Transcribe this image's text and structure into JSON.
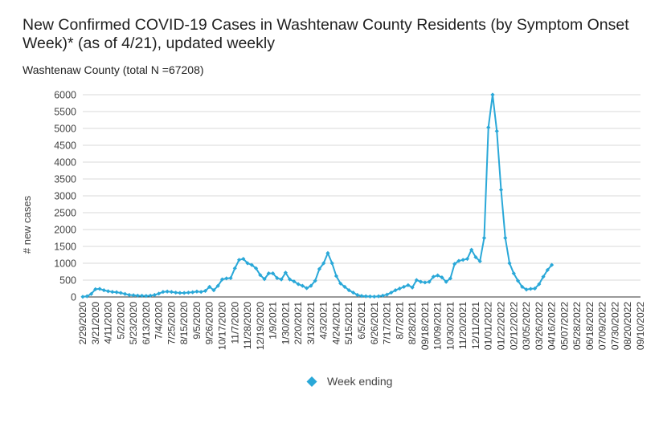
{
  "chart_data": {
    "type": "line",
    "title": "New Confirmed COVID-19 Cases in Washtenaw County Residents (by Symptom Onset Week)* (as of 4/21), updated weekly",
    "subtitle": "Washtenaw County (total N =67208)",
    "xlabel": "",
    "ylabel": "# new cases",
    "ylim": [
      0,
      6000
    ],
    "y_ticks": [
      0,
      500,
      1000,
      1500,
      2000,
      2500,
      3000,
      3500,
      4000,
      4500,
      5000,
      5500,
      6000
    ],
    "x_tick_labels": [
      "2/29/2020",
      "3/21/2020",
      "4/11/2020",
      "5/2/2020",
      "5/23/2020",
      "6/13/2020",
      "7/4/2020",
      "7/25/2020",
      "8/15/2020",
      "9/5/2020",
      "9/26/2020",
      "10/17/2020",
      "11/7/2020",
      "11/28/2020",
      "12/19/2020",
      "1/9/2021",
      "1/30/2021",
      "2/20/2021",
      "3/13/2021",
      "4/3/2021",
      "4/24/2021",
      "5/15/2021",
      "6/5/2021",
      "6/26/2021",
      "7/17/2021",
      "8/7/2021",
      "8/28/2021",
      "09/18/2021",
      "10/09/2021",
      "10/30/2021",
      "11/20/2021",
      "12/11/2021",
      "01/01/2022",
      "01/22/2022",
      "02/12/2022",
      "03/05/2022",
      "03/26/2022",
      "04/16/2022",
      "05/07/2022",
      "05/28/2022",
      "06/18/2022",
      "07/09/2022",
      "07/30/2022",
      "08/20/2022",
      "09/10/2022"
    ],
    "grid": true,
    "legend_position": "bottom",
    "color": "#2aa8d8",
    "series": [
      {
        "name": "Week ending",
        "values": [
          5,
          20,
          90,
          230,
          240,
          200,
          170,
          150,
          140,
          120,
          90,
          60,
          50,
          40,
          35,
          30,
          40,
          60,
          100,
          150,
          160,
          150,
          130,
          120,
          120,
          130,
          140,
          160,
          150,
          180,
          300,
          200,
          330,
          520,
          550,
          560,
          850,
          1100,
          1130,
          1000,
          950,
          850,
          650,
          530,
          700,
          700,
          560,
          520,
          720,
          520,
          460,
          380,
          330,
          260,
          330,
          480,
          830,
          1000,
          1300,
          1000,
          620,
          400,
          300,
          200,
          130,
          60,
          30,
          20,
          15,
          10,
          20,
          40,
          70,
          130,
          200,
          250,
          300,
          350,
          280,
          500,
          450,
          430,
          450,
          600,
          640,
          580,
          450,
          550,
          980,
          1070,
          1100,
          1130,
          1400,
          1180,
          1060,
          1750,
          5030,
          6000,
          4920,
          3180,
          1750,
          1000,
          700,
          480,
          300,
          220,
          240,
          250,
          380,
          600,
          800,
          950
        ]
      }
    ]
  }
}
